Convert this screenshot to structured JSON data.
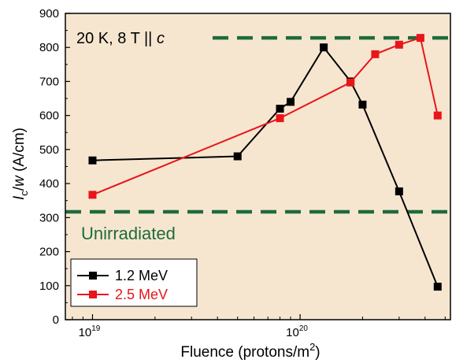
{
  "chart_data": {
    "type": "line",
    "xlabel": "Fluence (protons/m",
    "xlabel_sup": "2",
    "xlabel_close": ")",
    "ylabel_main": "I",
    "ylabel_sub": "c",
    "ylabel_slash": "/",
    "ylabel_w": "w",
    "ylabel_unit": " (A/cm)",
    "x_scale": "log",
    "xlim": [
      7.4e+18,
      5.3e+20
    ],
    "ylim": [
      0,
      900
    ],
    "y_ticks": [
      0,
      100,
      200,
      300,
      400,
      500,
      600,
      700,
      800,
      900
    ],
    "y_tick_labels": [
      "0",
      "100",
      "200",
      "300",
      "400",
      "500",
      "600",
      "700",
      "800",
      "900"
    ],
    "x_ticks": [
      1e+19,
      1e+20
    ],
    "x_tick_labels": [
      {
        "base": "10",
        "exp": "19"
      },
      {
        "base": "10",
        "exp": "20"
      }
    ],
    "background": "#f6e6d0",
    "series": [
      {
        "name": "1.2 MeV",
        "color": "#000000",
        "x": [
          1e+19,
          5e+19,
          8e+19,
          9e+19,
          1.3e+20,
          1.75e+20,
          2e+20,
          3e+20,
          4.6e+20
        ],
        "y": [
          468,
          480,
          620,
          640,
          800,
          700,
          632,
          377,
          97
        ]
      },
      {
        "name": "2.5 MeV",
        "color": "#e8151b",
        "x": [
          1e+19,
          8e+19,
          1.75e+20,
          2.3e+20,
          3e+20,
          3.8e+20,
          4.6e+20
        ],
        "y": [
          367,
          592,
          697,
          780,
          808,
          828,
          600
        ]
      }
    ],
    "reference_lines": [
      {
        "y": 828,
        "color": "#1e6b3c",
        "style": "dashed"
      },
      {
        "y": 317,
        "color": "#1e6b3c",
        "style": "dashed"
      }
    ],
    "annotation_main": "20 K, 8 T || ",
    "annotation_italic": "c",
    "annotation_unirradiated": "Unirradiated",
    "annotation_unirradiated_color": "#1e6b3c",
    "legend_position": "bottom-left",
    "grid": false
  }
}
